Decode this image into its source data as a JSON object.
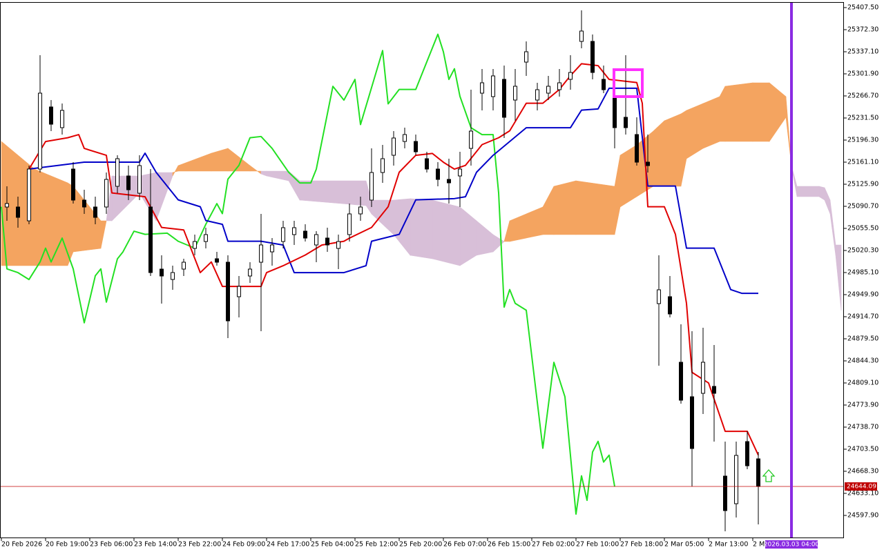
{
  "chart_data": {
    "type": "candlestick",
    "xlim": [
      -0.25,
      152.25
    ],
    "ylim": [
      24562.7,
      25416.3
    ],
    "xticks": [
      {
        "value": 0,
        "label": "20 Feb 2026"
      },
      {
        "value": 8,
        "label": "20 Feb 19:00"
      },
      {
        "value": 16,
        "label": "23 Feb 06:00"
      },
      {
        "value": 24,
        "label": "23 Feb 14:00"
      },
      {
        "value": 32,
        "label": "23 Feb 22:00"
      },
      {
        "value": 40,
        "label": "24 Feb 09:00"
      },
      {
        "value": 48,
        "label": "24 Feb 17:00"
      },
      {
        "value": 56,
        "label": "25 Feb 04:00"
      },
      {
        "value": 64,
        "label": "25 Feb 12:00"
      },
      {
        "value": 72,
        "label": "25 Feb 20:00"
      },
      {
        "value": 80,
        "label": "26 Feb 07:00"
      },
      {
        "value": 88,
        "label": "26 Feb 15:00"
      },
      {
        "value": 96,
        "label": "27 Feb 02:00"
      },
      {
        "value": 104,
        "label": "27 Feb 10:00"
      },
      {
        "value": 112,
        "label": "27 Feb 18:00"
      },
      {
        "value": 120,
        "label": "2 Mar 05:00"
      },
      {
        "value": 128,
        "label": "2 Mar 13:00"
      },
      {
        "value": 136,
        "label": "2 M"
      }
    ],
    "yticks": [
      {
        "value": 25407.5,
        "label": "25407.50"
      },
      {
        "value": 25372.3,
        "label": "25372.30"
      },
      {
        "value": 25337.1,
        "label": "25337.10"
      },
      {
        "value": 25301.9,
        "label": "25301.90"
      },
      {
        "value": 25266.7,
        "label": "25266.70"
      },
      {
        "value": 25231.5,
        "label": "25231.50"
      },
      {
        "value": 25196.3,
        "label": "25196.30"
      },
      {
        "value": 25161.1,
        "label": "25161.10"
      },
      {
        "value": 25125.9,
        "label": "25125.90"
      },
      {
        "value": 25090.7,
        "label": "25090.70"
      },
      {
        "value": 25055.5,
        "label": "25055.50"
      },
      {
        "value": 25020.3,
        "label": "25020.30"
      },
      {
        "value": 24985.1,
        "label": "24985.10"
      },
      {
        "value": 24949.9,
        "label": "24949.90"
      },
      {
        "value": 24914.7,
        "label": "24914.70"
      },
      {
        "value": 24879.5,
        "label": "24879.50"
      },
      {
        "value": 24844.3,
        "label": "24844.30"
      },
      {
        "value": 24809.1,
        "label": "24809.10"
      },
      {
        "value": 24773.9,
        "label": "24773.90"
      },
      {
        "value": 24738.7,
        "label": "24738.70"
      },
      {
        "value": 24703.5,
        "label": "24703.50"
      },
      {
        "value": 24668.3,
        "label": "24668.30"
      },
      {
        "value": 24633.1,
        "label": "24633.10"
      },
      {
        "value": 24597.9,
        "label": "24597.90"
      }
    ],
    "candles": {
      "up_color": "#ffffff",
      "down_color": "#000000",
      "edge_color": "#000000",
      "x": [
        1,
        3,
        5,
        7,
        9,
        11,
        13,
        15,
        17,
        19,
        21,
        23,
        25,
        27,
        29,
        31,
        33,
        35,
        37,
        39,
        41,
        43,
        45,
        47,
        49,
        51,
        53,
        55,
        57,
        59,
        61,
        63,
        65,
        67,
        69,
        71,
        73,
        75,
        77,
        79,
        81,
        83,
        85,
        87,
        89,
        91,
        93,
        95,
        97,
        99,
        101,
        103,
        105,
        107,
        109,
        111,
        113,
        115,
        117,
        119,
        121,
        123,
        125,
        127,
        129,
        131,
        133,
        135,
        137
      ],
      "open": [
        25089.6,
        25089.6,
        25067.6,
        25150.1,
        25249.1,
        25216.1,
        25150.1,
        25100.6,
        25089.6,
        25089.6,
        25122.6,
        25139.1,
        25111.6,
        25089.6,
        24990.6,
        24974.1,
        24990.6,
        25023.6,
        25034.6,
        25007.1,
        25001.6,
        24946.6,
        24979.6,
        25001.6,
        25018.1,
        25034.6,
        25045.6,
        25051.1,
        25029.1,
        25040.1,
        25023.6,
        25045.6,
        25078.6,
        25100.6,
        25144.6,
        25172.1,
        25194.1,
        25194.1,
        25166.6,
        25150.1,
        25133.6,
        25139.1,
        25183.1,
        25271.1,
        25265.6,
        25293.1,
        25260.1,
        25320.6,
        25260.1,
        25271.1,
        25276.6,
        25293.1,
        25353.6,
        25353.6,
        25293.1,
        25265.6,
        25232.6,
        25205.1,
        25161.1,
        24935.6,
        24946.6,
        24842.1,
        24787.1,
        24792.6,
        24803.6,
        24660.6,
        24616.6,
        24715.6,
        24688.1
      ],
      "high": [
        25122.6,
        25106.1,
        25155.6,
        25331.6,
        25260.1,
        25254.6,
        25161.1,
        25117.1,
        25106.1,
        25144.6,
        25172.1,
        25155.6,
        25172.1,
        25150.1,
        25012.6,
        24996.1,
        25007.1,
        25045.6,
        25056.6,
        25018.1,
        25012.6,
        24979.6,
        25001.6,
        25078.6,
        25040.1,
        25067.6,
        25067.6,
        25062.1,
        25051.1,
        25056.6,
        25045.6,
        25095.1,
        25106.1,
        25183.1,
        25188.6,
        25210.6,
        25216.1,
        25205.1,
        25177.6,
        25161.1,
        25166.6,
        25177.6,
        25276.6,
        25309.6,
        25309.6,
        25315.1,
        25309.6,
        25353.6,
        25287.6,
        25298.6,
        25309.6,
        25331.6,
        25403.1,
        25364.6,
        25315.1,
        25298.6,
        25331.6,
        25232.6,
        25205.1,
        25012.6,
        24979.6,
        24902.6,
        24891.6,
        24897.1,
        24869.6,
        24715.6,
        24715.6,
        24732.1,
        24699.1
      ],
      "low": [
        25067.6,
        25056.6,
        25062.1,
        25144.6,
        25210.6,
        25205.1,
        25095.1,
        25078.6,
        25062.1,
        25078.6,
        25111.6,
        25100.6,
        25100.6,
        24979.6,
        24935.6,
        24957.6,
        24979.6,
        25012.6,
        25023.6,
        24996.1,
        24880.6,
        24913.6,
        24968.6,
        24891.6,
        24996.1,
        25023.6,
        25029.1,
        25034.6,
        25001.6,
        25018.1,
        24990.6,
        25034.6,
        25067.6,
        25089.6,
        25128.1,
        25155.6,
        25183.1,
        25172.1,
        25144.6,
        25122.6,
        25095.1,
        25089.6,
        25155.6,
        25243.6,
        25243.6,
        25199.6,
        25227.1,
        25298.6,
        25243.6,
        25260.1,
        25265.6,
        25276.6,
        25342.6,
        25293.1,
        25271.1,
        25183.1,
        25205.1,
        25155.6,
        25144.6,
        24836.6,
        24913.6,
        24776.1,
        24644.1,
        24759.6,
        24715.6,
        24572.6,
        24594.6,
        24671.6,
        24583.6
      ],
      "close": [
        25095.1,
        25073.1,
        25150.1,
        25271.1,
        25221.6,
        25243.6,
        25100.6,
        25089.6,
        25073.1,
        25133.6,
        25166.6,
        25117.1,
        25155.6,
        24985.1,
        24979.6,
        24985.1,
        25001.6,
        25034.6,
        25045.6,
        25001.6,
        24908.1,
        24963.1,
        24990.6,
        25029.1,
        25029.1,
        25056.6,
        25056.6,
        25040.1,
        25045.6,
        25029.1,
        25034.6,
        25078.6,
        25089.6,
        25144.6,
        25166.6,
        25199.6,
        25205.1,
        25177.6,
        25150.1,
        25133.6,
        25128.1,
        25150.1,
        25210.6,
        25287.6,
        25298.6,
        25232.6,
        25282.1,
        25337.1,
        25276.6,
        25282.1,
        25287.6,
        25304.1,
        25370.1,
        25304.1,
        25276.6,
        25216.1,
        25216.1,
        25161.1,
        25155.6,
        24957.6,
        24919.1,
        24781.6,
        24704.6,
        24842.1,
        24792.6,
        24605.6,
        24693.6,
        24677.1,
        24644.1
      ]
    },
    "cloud": {
      "bull_color": "#f4a460",
      "bear_color": "#d8bfd8",
      "x": [
        0,
        6,
        12,
        13,
        18,
        19,
        20,
        25,
        28,
        31,
        32,
        38,
        41,
        45,
        47,
        48,
        52,
        54,
        66,
        67,
        71,
        74,
        78,
        83,
        86,
        89,
        91,
        92,
        98,
        100,
        104,
        111,
        112,
        115,
        118,
        120,
        123,
        124,
        127,
        130,
        131,
        136,
        139,
        142,
        143,
        144,
        148,
        149,
        150,
        151,
        152
      ],
      "span_a": [
        25194.1,
        25150.1,
        25128.1,
        25122.6,
        25067.6,
        25067.6,
        25067.6,
        25111.6,
        25067.6,
        25139.1,
        25155.6,
        25175.4,
        25183.1,
        25155.6,
        25142.4,
        25139.1,
        25131.4,
        25100.6,
        25091.8,
        25078.6,
        25045.6,
        25012.6,
        25007.1,
        24996.1,
        25012.6,
        25018.1,
        25034.6,
        25067.6,
        25089.6,
        25122.6,
        25131.4,
        25122.6,
        25172.1,
        25188.6,
        25210.6,
        25227.1,
        25238.1,
        25243.6,
        25254.6,
        25265.6,
        25282.1,
        25287.6,
        25287.6,
        25265.6,
        25155.6,
        25106.1,
        25106.1,
        25100.6,
        25078.6,
        25012.6,
        24924.6
      ],
      "span_b": [
        24996.1,
        24996.1,
        24996.1,
        25018.1,
        25023.6,
        25067.6,
        25139.1,
        25139.1,
        25144.6,
        25144.6,
        25146.8,
        25146.8,
        25146.8,
        25146.8,
        25146.8,
        25146.8,
        25146.8,
        25131.4,
        25131.4,
        25100.6,
        25100.6,
        25102.8,
        25100.6,
        25089.6,
        25067.6,
        25045.6,
        25034.6,
        25034.6,
        25045.6,
        25045.6,
        25045.6,
        25045.6,
        25089.6,
        25106.1,
        25122.6,
        25122.6,
        25122.6,
        25166.6,
        25183.1,
        25194.1,
        25194.1,
        25194.1,
        25194.1,
        25232.6,
        25155.6,
        25122.6,
        25122.6,
        25120.4,
        25100.6,
        25029.1,
        25029.1
      ]
    },
    "lines": [
      {
        "color": "#22e022",
        "x": [
          0,
          1,
          3,
          5,
          7,
          8,
          9,
          11,
          13,
          15,
          17,
          18,
          19,
          21,
          22,
          24,
          26,
          30,
          32,
          35,
          37,
          39,
          40,
          41,
          43,
          45,
          47,
          49,
          52,
          54,
          56,
          57,
          60,
          62,
          64,
          65,
          69,
          70,
          72,
          75,
          79,
          80,
          81,
          82,
          83,
          85,
          87,
          89,
          90,
          91,
          92,
          93,
          95,
          98,
          100,
          102,
          104,
          105,
          106,
          107,
          108,
          109,
          110,
          111
        ],
        "values": [
          25090,
          24991,
          24985,
          24974,
          25002,
          25024,
          25002,
          25040,
          24991,
          24905,
          24980,
          24991,
          24938,
          25007,
          25018,
          25051,
          25046,
          25048,
          25035,
          25024,
          25062,
          25095,
          25079,
          25134,
          25156,
          25200,
          25202,
          25183,
          25145,
          25128,
          25128,
          25150,
          25282,
          25260,
          25293,
          25221,
          25339,
          25254,
          25277,
          25277,
          25365,
          25337,
          25293,
          25310,
          25266,
          25216,
          25205,
          25205,
          25112,
          24930,
          24958,
          24936,
          24925,
          24705,
          24842,
          24787,
          24600,
          24661,
          24622,
          24699,
          24716,
          24683,
          24694,
          24644
        ]
      },
      {
        "color": "#0000c8",
        "x": [
          5,
          15,
          25,
          26,
          28,
          32,
          36,
          37,
          40,
          41,
          47,
          51,
          53,
          62,
          66,
          67,
          72,
          75,
          82,
          84,
          86,
          89,
          92,
          95,
          103,
          105,
          108,
          110,
          115,
          117,
          122,
          124,
          129,
          132,
          134,
          137
        ],
        "values": [
          25150.1,
          25161.1,
          25161.1,
          25175.4,
          25145,
          25101,
          25090,
          25068,
          25062,
          25035,
          25035,
          25029,
          24985,
          24985,
          24996,
          25035,
          25046,
          25101,
          25103,
          25106,
          25145,
          25172,
          25194,
          25216,
          25216,
          25244,
          25246,
          25279,
          25279,
          25123,
          25123,
          25024,
          25024,
          24958,
          24952,
          24952
        ]
      },
      {
        "color": "#e00000",
        "x": [
          5,
          8,
          12,
          14,
          15,
          19,
          20,
          26,
          29,
          33,
          36,
          38,
          40,
          47,
          48,
          51,
          55,
          58,
          62,
          63,
          67,
          70,
          72,
          75,
          78,
          80,
          82,
          84,
          87,
          90,
          92,
          95,
          98,
          101,
          103,
          105,
          108,
          110,
          115,
          116,
          117,
          120,
          122,
          124,
          125,
          128,
          131,
          135,
          137
        ],
        "values": [
          25150,
          25194,
          25200,
          25205,
          25183,
          25172,
          25112,
          25106,
          25057,
          25053,
          24985,
          25002,
          24963,
          24963,
          24985,
          24996,
          25013,
          25029,
          25035,
          25040,
          25057,
          25090,
          25145,
          25172,
          25175,
          25161,
          25150,
          25156,
          25189,
          25200,
          25211,
          25255,
          25255,
          25277,
          25299,
          25318,
          25315,
          25293,
          25288,
          25255,
          25090,
          25090,
          25046,
          24936,
          24826,
          24809,
          24732,
          24732,
          24694
        ]
      }
    ],
    "current_price": {
      "value": 24644.09,
      "color": "#c00000"
    },
    "time_marker": {
      "x": 143,
      "label": "2026.03.03 04:00",
      "color": "#8a2be2"
    }
  }
}
